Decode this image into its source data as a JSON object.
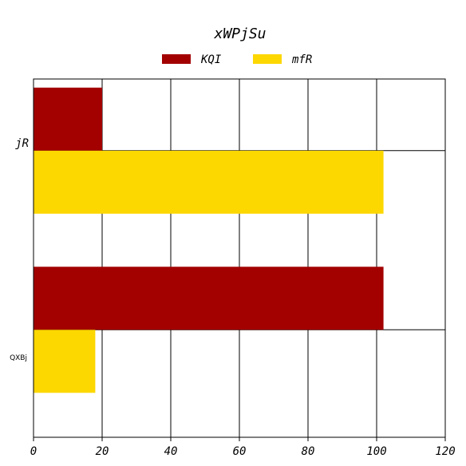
{
  "chart_data": {
    "type": "bar",
    "orientation": "horizontal",
    "title": "xWPjSu",
    "categories": [
      "jR",
      "QXBj"
    ],
    "series": [
      {
        "name": "KQI",
        "color": "#a30000",
        "values": [
          20,
          102
        ]
      },
      {
        "name": "mfR",
        "color": "#fdd700",
        "values": [
          102,
          18
        ]
      }
    ],
    "xlim": [
      0,
      120
    ],
    "xticks": [
      0,
      20,
      40,
      60,
      80,
      100,
      120
    ],
    "xlabel": "",
    "ylabel": "",
    "grid": true,
    "legend": "top-center"
  }
}
